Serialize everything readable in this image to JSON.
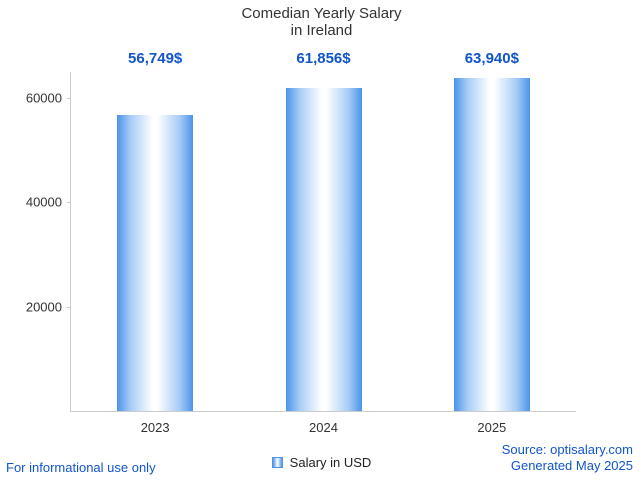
{
  "chart_data": {
    "type": "bar",
    "title": "Comedian Yearly Salary in Ireland",
    "title_lines": [
      "Comedian Yearly Salary",
      "in Ireland"
    ],
    "categories": [
      "2023",
      "2024",
      "2025"
    ],
    "series": [
      {
        "name": "Salary in USD",
        "values": [
          56749,
          61856,
          63940
        ]
      }
    ],
    "value_labels": [
      "56,749$",
      "61,856$",
      "63,940$"
    ],
    "xlabel": "",
    "ylabel": "",
    "ylim": [
      0,
      65000
    ],
    "yticks": [
      20000,
      40000,
      60000
    ],
    "ytick_labels": [
      "20000",
      "40000",
      "60000"
    ],
    "grid": false,
    "legend_position": "bottom",
    "legend": [
      "Salary in USD"
    ]
  },
  "legend": {
    "label": "Salary in USD"
  },
  "footer": {
    "disclaimer": "For informational use only",
    "source": "Source: optisalary.com",
    "generated": "Generated May 2025"
  },
  "colors": {
    "bar_edge": "#4b94ea",
    "bar_center": "#ffffff",
    "annotation_blue": "#1155cc",
    "link_blue": "#1155cc",
    "axis_gray": "#cccccc",
    "text_dark": "#333333"
  }
}
